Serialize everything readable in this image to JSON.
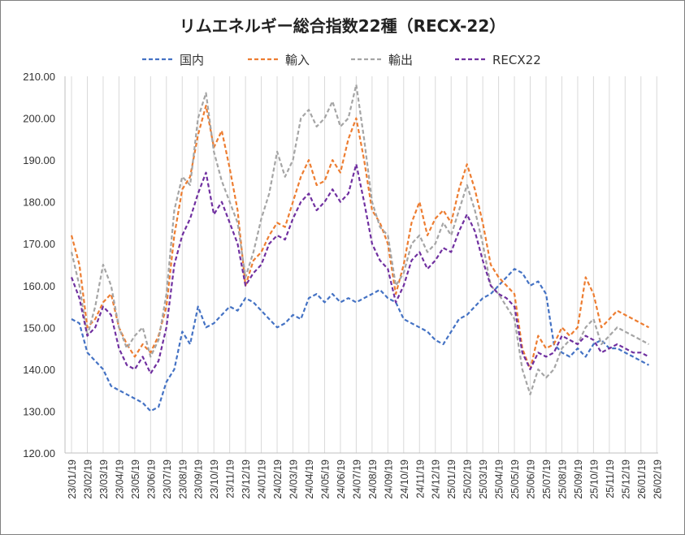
{
  "chart_data": {
    "type": "line",
    "title": "リムエネルギー総合指数22種（RECX-22）",
    "xlabel": "",
    "ylabel": "",
    "ylim": [
      120,
      210
    ],
    "yticks": [
      "120.00",
      "130.00",
      "140.00",
      "150.00",
      "160.00",
      "170.00",
      "180.00",
      "190.00",
      "200.00",
      "210.00"
    ],
    "xticks": [
      "23/01/19",
      "23/02/19",
      "23/03/19",
      "23/04/19",
      "23/05/19",
      "23/06/19",
      "23/07/19",
      "23/08/19",
      "23/09/19",
      "23/10/19",
      "23/11/19",
      "23/12/19",
      "24/01/19",
      "24/02/19",
      "24/03/19",
      "24/04/19",
      "24/05/19",
      "24/06/19",
      "24/07/19",
      "24/08/19",
      "24/09/19",
      "24/10/19",
      "24/11/19",
      "24/12/19",
      "25/01/19",
      "25/02/19",
      "25/03/19",
      "25/04/19",
      "25/05/19",
      "25/06/19",
      "25/07/19",
      "25/08/19",
      "25/09/19",
      "25/10/19",
      "25/11/19",
      "25/12/19",
      "26/01/19",
      "26/02/19"
    ],
    "grid": "vertical",
    "legend_position": "top",
    "x_months": [
      1,
      1.5,
      2,
      2.5,
      3,
      3.5,
      4,
      4.5,
      5,
      5.5,
      6,
      6.5,
      7,
      7.5,
      8,
      8.5,
      9,
      9.5,
      10,
      10.5,
      11,
      11.5,
      12,
      12.5,
      13,
      13.5,
      14,
      14.5,
      15,
      15.5,
      16,
      16.5,
      17,
      17.5,
      18,
      18.5,
      19,
      19.5,
      20,
      20.5,
      21,
      21.5,
      22,
      22.5,
      23,
      23.5,
      24,
      24.5,
      25,
      25.5,
      26,
      26.5,
      27,
      27.5,
      28,
      28.5,
      29,
      29.5,
      30,
      30.5,
      31,
      31.5,
      32,
      32.5,
      33,
      33.5,
      34,
      34.5,
      35,
      35.5,
      36,
      36.5,
      37,
      37.5
    ],
    "series": [
      {
        "name": "国内",
        "color": "#4472C4",
        "values": [
          152,
          151,
          144,
          142,
          140,
          136,
          135,
          134,
          133,
          132,
          130,
          131,
          137,
          140,
          149,
          146,
          155,
          150,
          151,
          153,
          155,
          154,
          157,
          156,
          154,
          152,
          150,
          151,
          153,
          152,
          157,
          158,
          156,
          158,
          156,
          157,
          156,
          157,
          158,
          159,
          157,
          156,
          152,
          151,
          150,
          149,
          147,
          146,
          149,
          152,
          153,
          155,
          157,
          158,
          160,
          162,
          164,
          163,
          160,
          161,
          158,
          146,
          144,
          143,
          145,
          143,
          146,
          147,
          145,
          145,
          144,
          143,
          142,
          141
        ]
      },
      {
        "name": "輸入",
        "color": "#ED7D31",
        "values": [
          172,
          165,
          150,
          152,
          156,
          158,
          150,
          146,
          143,
          146,
          144,
          148,
          155,
          172,
          183,
          186,
          196,
          203,
          193,
          197,
          188,
          178,
          160,
          166,
          168,
          172,
          175,
          174,
          180,
          186,
          190,
          184,
          185,
          190,
          187,
          195,
          200,
          190,
          178,
          175,
          170,
          158,
          165,
          175,
          180,
          172,
          176,
          178,
          175,
          183,
          189,
          183,
          175,
          165,
          162,
          160,
          158,
          145,
          140,
          148,
          145,
          146,
          150,
          148,
          150,
          162,
          158,
          150,
          152,
          154,
          153,
          152,
          151,
          150
        ]
      },
      {
        "name": "輸出",
        "color": "#A5A5A5",
        "values": [
          168,
          160,
          148,
          155,
          165,
          160,
          150,
          145,
          148,
          150,
          143,
          147,
          158,
          178,
          186,
          184,
          200,
          206,
          192,
          185,
          180,
          175,
          162,
          168,
          176,
          182,
          192,
          186,
          190,
          200,
          202,
          198,
          200,
          204,
          198,
          200,
          208,
          195,
          180,
          174,
          172,
          160,
          163,
          170,
          172,
          168,
          170,
          175,
          172,
          178,
          184,
          178,
          170,
          160,
          158,
          155,
          152,
          140,
          134,
          140,
          138,
          140,
          145,
          147,
          146,
          150,
          152,
          146,
          148,
          150,
          149,
          148,
          147,
          146
        ]
      },
      {
        "name": "RECX22",
        "color": "#7030A0",
        "values": [
          162,
          157,
          148,
          150,
          155,
          153,
          145,
          141,
          140,
          143,
          139,
          142,
          150,
          165,
          172,
          176,
          182,
          187,
          177,
          180,
          175,
          170,
          160,
          163,
          165,
          170,
          172,
          171,
          176,
          180,
          182,
          178,
          180,
          183,
          180,
          182,
          189,
          180,
          170,
          166,
          164,
          156,
          160,
          166,
          168,
          164,
          166,
          169,
          168,
          173,
          177,
          173,
          166,
          160,
          158,
          157,
          155,
          144,
          140,
          144,
          143,
          144,
          148,
          147,
          146,
          148,
          147,
          144,
          145,
          146,
          145,
          144,
          144,
          143
        ]
      }
    ]
  }
}
